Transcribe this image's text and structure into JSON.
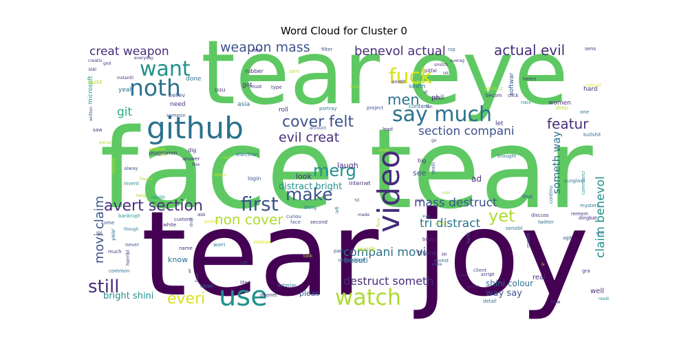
{
  "chart_data": {
    "type": "wordcloud",
    "title": "Word Cloud for Cluster 0",
    "colormap": [
      "#440154",
      "#472c7a",
      "#3b528b",
      "#2c728e",
      "#21918c",
      "#28ae80",
      "#5ec962",
      "#addc30",
      "#d8e219",
      "#fde725"
    ],
    "words": [
      {
        "text": "tear joy",
        "weight": 1.0,
        "color": 0
      },
      {
        "text": "face tear",
        "weight": 0.98,
        "color": 6
      },
      {
        "text": "tear eye",
        "weight": 0.9,
        "color": 6
      },
      {
        "text": "github",
        "weight": 0.38,
        "color": 3
      },
      {
        "text": "video",
        "weight": 0.32,
        "color": 1
      },
      {
        "text": "use",
        "weight": 0.29,
        "color": 4
      },
      {
        "text": "watch",
        "weight": 0.25,
        "color": 7
      },
      {
        "text": "noth",
        "weight": 0.22,
        "color": 3
      },
      {
        "text": "fuck",
        "weight": 0.22,
        "color": 8
      },
      {
        "text": "say much",
        "weight": 0.22,
        "color": 3
      },
      {
        "text": "want",
        "weight": 0.21,
        "color": 4
      },
      {
        "text": "first",
        "weight": 0.2,
        "color": 2
      },
      {
        "text": "still",
        "weight": 0.19,
        "color": 1
      },
      {
        "text": "make",
        "weight": 0.18,
        "color": 2
      },
      {
        "text": "merg",
        "weight": 0.18,
        "color": 4
      },
      {
        "text": "yet",
        "weight": 0.18,
        "color": 7
      },
      {
        "text": "everi",
        "weight": 0.17,
        "color": 8
      },
      {
        "text": "men",
        "weight": 0.16,
        "color": 3
      },
      {
        "text": "avert section",
        "weight": 0.16,
        "color": 1
      },
      {
        "text": "cover felt",
        "weight": 0.16,
        "color": 2
      },
      {
        "text": "non cover",
        "weight": 0.16,
        "color": 7
      },
      {
        "text": "featur",
        "weight": 0.15,
        "color": 1
      },
      {
        "text": "evil creat",
        "weight": 0.14,
        "color": 1
      },
      {
        "text": "weapon mass",
        "weight": 0.14,
        "color": 2
      },
      {
        "text": "creat weapon",
        "weight": 0.14,
        "color": 1
      },
      {
        "text": "actual evil",
        "weight": 0.14,
        "color": 1
      },
      {
        "text": "benevol actual",
        "weight": 0.13,
        "color": 1
      },
      {
        "text": "section compani",
        "weight": 0.13,
        "color": 2
      },
      {
        "text": "compani movi",
        "weight": 0.12,
        "color": 3
      },
      {
        "text": "mass destruct",
        "weight": 0.12,
        "color": 2
      },
      {
        "text": "tri distract",
        "weight": 0.12,
        "color": 3
      },
      {
        "text": "destruct someth",
        "weight": 0.12,
        "color": 1
      },
      {
        "text": "movi claim",
        "weight": 0.11,
        "color": 2
      },
      {
        "text": "claim benevol",
        "weight": 0.11,
        "color": 4
      },
      {
        "text": "someth way",
        "weight": 0.1,
        "color": 3
      },
      {
        "text": "git",
        "weight": 0.11,
        "color": 5
      },
      {
        "text": "distract bright",
        "weight": 0.09,
        "color": 4
      },
      {
        "text": "bright shini",
        "weight": 0.08,
        "color": 4
      },
      {
        "text": "shini colour",
        "weight": 0.08,
        "color": 3
      },
      {
        "text": "way say",
        "weight": 0.08,
        "color": 2
      },
      {
        "text": "ad",
        "weight": 0.07,
        "color": 1
      },
      {
        "text": "laugh",
        "weight": 0.06,
        "color": 1
      },
      {
        "text": "look",
        "weight": 0.06,
        "color": 1
      },
      {
        "text": "see",
        "weight": 0.06,
        "color": 2
      },
      {
        "text": "work",
        "weight": 0.06,
        "color": 7
      },
      {
        "text": "beauti",
        "weight": 0.06,
        "color": 3
      },
      {
        "text": "know",
        "weight": 0.06,
        "color": 3
      },
      {
        "text": "women",
        "weight": 0.05,
        "color": 1
      },
      {
        "text": "real",
        "weight": 0.05,
        "color": 1
      },
      {
        "text": "well",
        "weight": 0.05,
        "color": 1
      },
      {
        "text": "pleas",
        "weight": 0.05,
        "color": 2
      },
      {
        "text": "thank",
        "weight": 0.05,
        "color": 1
      },
      {
        "text": "phil",
        "weight": 0.05,
        "color": 1
      },
      {
        "text": "got",
        "weight": 0.05,
        "color": 1
      },
      {
        "text": "done",
        "weight": 0.05,
        "color": 3
      },
      {
        "text": "seem",
        "weight": 0.05,
        "color": 3
      },
      {
        "text": "softwar",
        "weight": 0.05,
        "color": 2
      },
      {
        "text": "microsoft",
        "weight": 0.05,
        "color": 4
      },
      {
        "text": "need",
        "weight": 0.05,
        "color": 1
      },
      {
        "text": "believ",
        "weight": 0.04,
        "color": 2
      },
      {
        "text": "asia",
        "weight": 0.04,
        "color": 3
      },
      {
        "text": "issu",
        "weight": 0.04,
        "color": 1
      },
      {
        "text": "roll",
        "weight": 0.04,
        "color": 1
      },
      {
        "text": "let",
        "weight": 0.04,
        "color": 1
      },
      {
        "text": "yeah",
        "weight": 0.04,
        "color": 3
      },
      {
        "text": "build",
        "weight": 0.04,
        "color": 7
      },
      {
        "text": "year",
        "weight": 0.04,
        "color": 3
      },
      {
        "text": "content",
        "weight": 0.04,
        "color": 3
      },
      {
        "text": "portray",
        "weight": 0.04,
        "color": 3
      },
      {
        "text": "project",
        "weight": 0.04,
        "color": 2
      },
      {
        "text": "lead",
        "weight": 0.04,
        "color": 1
      },
      {
        "text": "dig",
        "weight": 0.04,
        "color": 1
      },
      {
        "text": "programm",
        "weight": 0.04,
        "color": 1
      },
      {
        "text": "electron",
        "weight": 0.04,
        "color": 3
      },
      {
        "text": "internet",
        "weight": 0.04,
        "color": 1
      },
      {
        "text": "realli",
        "weight": 0.04,
        "color": 2
      },
      {
        "text": "big",
        "weight": 0.04,
        "color": 1
      },
      {
        "text": "brought",
        "weight": 0.04,
        "color": 3
      },
      {
        "text": "sunglass",
        "weight": 0.04,
        "color": 3
      },
      {
        "text": "bullshit",
        "weight": 0.04,
        "color": 3
      },
      {
        "text": "deep",
        "weight": 0.04,
        "color": 7
      },
      {
        "text": "hard",
        "weight": 0.04,
        "color": 1
      },
      {
        "text": "one",
        "weight": 0.04,
        "color": 3
      },
      {
        "text": "face",
        "weight": 0.04,
        "color": 2
      },
      {
        "text": "login",
        "weight": 0.04,
        "color": 2
      },
      {
        "text": "answer",
        "weight": 0.04,
        "color": 1
      },
      {
        "text": "alway",
        "weight": 0.04,
        "color": 2
      },
      {
        "text": "invent",
        "weight": 0.04,
        "color": 4
      },
      {
        "text": "realiti",
        "weight": 0.04,
        "color": 4
      },
      {
        "text": "bankrupt",
        "weight": 0.04,
        "color": 4
      },
      {
        "text": "custom",
        "weight": 0.04,
        "color": 1
      },
      {
        "text": "white",
        "weight": 0.04,
        "color": 1
      },
      {
        "text": "come",
        "weight": 0.04,
        "color": 2
      },
      {
        "text": "never",
        "weight": 0.04,
        "color": 2
      },
      {
        "text": "much",
        "weight": 0.04,
        "color": 1
      },
      {
        "text": "name",
        "weight": 0.04,
        "color": 1
      },
      {
        "text": "worri",
        "weight": 0.04,
        "color": 3
      },
      {
        "text": "cat",
        "weight": 0.04,
        "color": 2
      },
      {
        "text": "liter",
        "weight": 0.04,
        "color": 1
      },
      {
        "text": "clean",
        "weight": 0.04,
        "color": 3
      },
      {
        "text": "deterior",
        "weight": 0.04,
        "color": 3
      },
      {
        "text": "phonet",
        "weight": 0.04,
        "color": 1
      },
      {
        "text": "common",
        "weight": 0.04,
        "color": 3
      },
      {
        "text": "horribl",
        "weight": 0.04,
        "color": 1
      },
      {
        "text": "thing",
        "weight": 0.04,
        "color": 3
      },
      {
        "text": "second",
        "weight": 0.04,
        "color": 1
      },
      {
        "text": "curiou",
        "weight": 0.04,
        "color": 2
      },
      {
        "text": "ass",
        "weight": 0.04,
        "color": 1
      },
      {
        "text": "instead",
        "weight": 0.04,
        "color": 8
      },
      {
        "text": "part",
        "weight": 0.04,
        "color": 2
      },
      {
        "text": "understood",
        "weight": 0.04,
        "color": 3
      },
      {
        "text": "invest",
        "weight": 0.04,
        "color": 3
      },
      {
        "text": "buggi",
        "weight": 0.04,
        "color": 1
      },
      {
        "text": "lucki",
        "weight": 0.04,
        "color": 3
      },
      {
        "text": "client",
        "weight": 0.04,
        "color": 2
      },
      {
        "text": "mostli",
        "weight": 0.04,
        "color": 3
      },
      {
        "text": "script",
        "weight": 0.04,
        "color": 1
      },
      {
        "text": "smile",
        "weight": 0.04,
        "color": 1
      },
      {
        "text": "detail",
        "weight": 0.04,
        "color": 3
      },
      {
        "text": "new",
        "weight": 0.04,
        "color": 1
      },
      {
        "text": "gra",
        "weight": 0.04,
        "color": 1
      },
      {
        "text": "agit",
        "weight": 0.04,
        "color": 2
      },
      {
        "text": "shit",
        "weight": 0.04,
        "color": 3
      },
      {
        "text": "dingbat",
        "weight": 0.04,
        "color": 1
      },
      {
        "text": "twitter",
        "weight": 0.04,
        "color": 3
      },
      {
        "text": "discuss",
        "weight": 0.04,
        "color": 1
      },
      {
        "text": "sensibl",
        "weight": 0.04,
        "color": 3
      },
      {
        "text": "remem",
        "weight": 0.04,
        "color": 1
      },
      {
        "text": "mysteri",
        "weight": 0.04,
        "color": 3
      },
      {
        "text": "final",
        "weight": 0.04,
        "color": 2
      },
      {
        "text": "continu",
        "weight": 0.04,
        "color": 3
      },
      {
        "text": "commerci",
        "weight": 0.04,
        "color": 4
      },
      {
        "text": "saw",
        "weight": 0.04,
        "color": 1
      },
      {
        "text": "someon",
        "weight": 0.04,
        "color": 2
      },
      {
        "text": "product",
        "weight": 0.04,
        "color": 7
      },
      {
        "text": "click",
        "weight": 0.04,
        "color": 1
      },
      {
        "text": "naiv",
        "weight": 0.04,
        "color": 4
      },
      {
        "text": "anoth",
        "weight": 0.04,
        "color": 1
      },
      {
        "text": "destroy",
        "weight": 0.04,
        "color": 8
      },
      {
        "text": "type",
        "weight": 0.04,
        "color": 1
      },
      {
        "text": "sorri",
        "weight": 0.04,
        "color": 7
      },
      {
        "text": "rubber",
        "weight": 0.04,
        "color": 1
      },
      {
        "text": "must",
        "weight": 0.04,
        "color": 1
      },
      {
        "text": "rare",
        "weight": 0.04,
        "color": 1
      },
      {
        "text": "filter",
        "weight": 0.04,
        "color": 2
      },
      {
        "text": "rsp",
        "weight": 0.04,
        "color": 3
      },
      {
        "text": "averag",
        "weight": 0.04,
        "color": 1
      },
      {
        "text": "pitfal",
        "weight": 0.04,
        "color": 1
      },
      {
        "text": "us",
        "weight": 0.04,
        "color": 1
      },
      {
        "text": "becom",
        "weight": 0.04,
        "color": 1
      },
      {
        "text": "helen",
        "weight": 0.04,
        "color": 1
      },
      {
        "text": "sens",
        "weight": 0.04,
        "color": 1
      },
      {
        "text": "god",
        "weight": 0.04,
        "color": 1
      },
      {
        "text": "everyday",
        "weight": 0.04,
        "color": 1
      },
      {
        "text": "bibl",
        "weight": 0.04,
        "color": 1
      },
      {
        "text": "creativ",
        "weight": 0.04,
        "color": 1
      },
      {
        "text": "instantli",
        "weight": 0.04,
        "color": 1
      },
      {
        "text": "written",
        "weight": 0.04,
        "color": 2
      },
      {
        "text": "co",
        "weight": 0.04,
        "color": 1
      },
      {
        "text": "st",
        "weight": 0.04,
        "color": 1
      },
      {
        "text": "fun",
        "weight": 0.04,
        "color": 1
      },
      {
        "text": "account",
        "weight": 0.04,
        "color": 2
      },
      {
        "text": "go",
        "weight": 0.04,
        "color": 1
      },
      {
        "text": "ruin",
        "weight": 0.04,
        "color": 1
      },
      {
        "text": "left",
        "weight": 0.04,
        "color": 3
      },
      {
        "text": "made",
        "weight": 0.04,
        "color": 1
      },
      {
        "text": "tri",
        "weight": 0.04,
        "color": 1
      },
      {
        "text": "user",
        "weight": 0.04,
        "color": 7
      },
      {
        "text": "eye",
        "weight": 0.04,
        "color": 3
      },
      {
        "text": "kindli",
        "weight": 0.04,
        "color": 7
      },
      {
        "text": "woke",
        "weight": 0.04,
        "color": 2
      },
      {
        "text": "score",
        "weight": 0.04,
        "color": 1
      },
      {
        "text": "pp",
        "weight": 0.04,
        "color": 1
      },
      {
        "text": "took",
        "weight": 0.04,
        "color": 7
      },
      {
        "text": "spi",
        "weight": 0.04,
        "color": 1
      },
      {
        "text": "though",
        "weight": 0.04,
        "color": 3
      },
      {
        "text": "drop",
        "weight": 0.04,
        "color": 2
      },
      {
        "text": "hear",
        "weight": 0.04,
        "color": 2
      },
      {
        "text": "keep",
        "weight": 0.04,
        "color": 7
      },
      {
        "text": "anybodi",
        "weight": 0.04,
        "color": 8
      },
      {
        "text": "talk",
        "weight": 0.04,
        "color": 7
      },
      {
        "text": "next",
        "weight": 0.04,
        "color": 7
      },
      {
        "text": "foie",
        "weight": 0.04,
        "color": 1
      },
      {
        "text": "excus",
        "weight": 0.04,
        "color": 8
      },
      {
        "text": "theme",
        "weight": 0.04,
        "color": 7
      },
      {
        "text": "interest",
        "weight": 0.04,
        "color": 7
      },
      {
        "text": "portion",
        "weight": 0.04,
        "color": 8
      },
      {
        "text": "readi",
        "weight": 0.04,
        "color": 4
      },
      {
        "text": "coincid",
        "weight": 0.04,
        "color": 8
      },
      {
        "text": "hole",
        "weight": 0.04,
        "color": 7
      },
      {
        "text": "floor",
        "weight": 0.04,
        "color": 7
      },
      {
        "text": "emot",
        "weight": 0.04,
        "color": 8
      },
      {
        "text": "excus",
        "weight": 0.04,
        "color": 7
      },
      {
        "text": "smitch",
        "weight": 0.04,
        "color": 1
      },
      {
        "text": "&",
        "weight": 0.04,
        "color": 7
      },
      {
        "text": "§",
        "weight": 0.04,
        "color": 1
      }
    ]
  }
}
